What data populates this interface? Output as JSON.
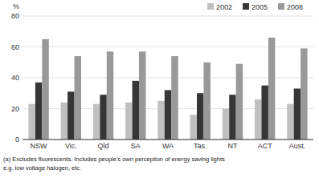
{
  "chart_data": {
    "type": "bar",
    "y_label": "%",
    "categories": [
      "NSW",
      "Vic.",
      "Qld",
      "SA",
      "WA",
      "Tas.",
      "NT",
      "ACT",
      "Aust."
    ],
    "series": [
      {
        "name": "2002",
        "color": "#c0c0c0",
        "values": [
          23,
          24,
          23,
          24,
          25,
          16,
          20,
          26,
          23
        ]
      },
      {
        "name": "2005",
        "color": "#363636",
        "values": [
          37,
          31,
          29,
          38,
          32,
          30,
          29,
          35,
          33
        ]
      },
      {
        "name": "2008",
        "color": "#999999",
        "values": [
          65,
          54,
          57,
          57,
          54,
          50,
          49,
          66,
          59
        ]
      }
    ],
    "ylim": [
      0,
      80
    ],
    "yticks": [
      0,
      20,
      40,
      60,
      80
    ],
    "grid": true,
    "legend": "upper right",
    "annotations": [
      "(a) Excludes fluorescents. Includes people's own perception of energy saving lights",
      "e.g. low voltage halogen, etc."
    ]
  }
}
